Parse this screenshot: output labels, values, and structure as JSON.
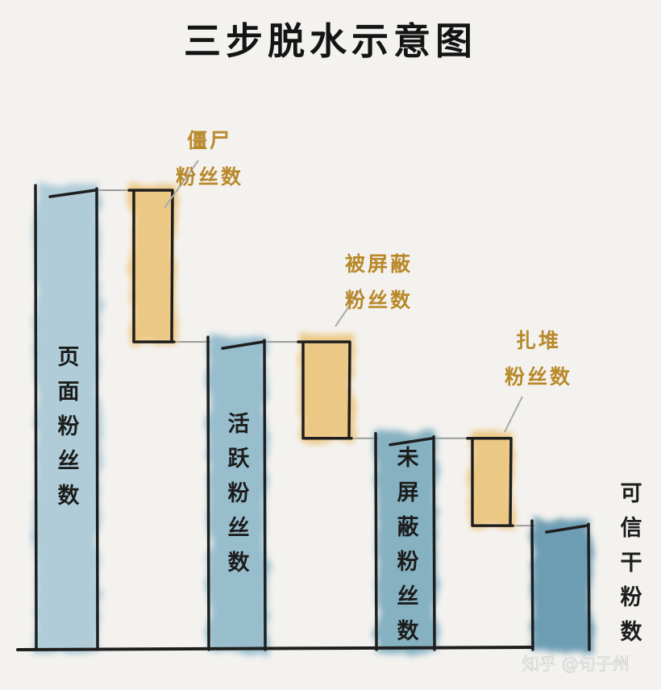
{
  "chart_data": {
    "type": "waterfall",
    "title": "三步脱水示意图",
    "categories": [
      "页面粉丝数",
      "僵尸粉丝数",
      "活跃粉丝数",
      "被屏蔽粉丝数",
      "未屏蔽粉丝数",
      "扎堆粉丝数",
      "可信干粉数"
    ],
    "bars": [
      {
        "label": "页面粉丝数",
        "kind": "total",
        "top": 100,
        "bottom": 0,
        "color": "#a8c8d6"
      },
      {
        "label": "僵尸粉丝数",
        "kind": "decrease",
        "top": 100,
        "bottom": 67,
        "color": "#ecc47a",
        "callout": [
          "僵尸",
          "粉丝数"
        ]
      },
      {
        "label": "活跃粉丝数",
        "kind": "total",
        "top": 67,
        "bottom": 0,
        "color": "#8fb9cb"
      },
      {
        "label": "被屏蔽粉丝数",
        "kind": "decrease",
        "top": 67,
        "bottom": 46,
        "color": "#ecc47a",
        "callout": [
          "被屏蔽",
          "粉丝数"
        ]
      },
      {
        "label": "未屏蔽粉丝数",
        "kind": "total",
        "top": 46,
        "bottom": 0,
        "color": "#7aaabd"
      },
      {
        "label": "扎堆粉丝数",
        "kind": "decrease",
        "top": 46,
        "bottom": 27,
        "color": "#ecc47a",
        "callout": [
          "扎堆",
          "粉丝数"
        ]
      },
      {
        "label": "可信干粉数",
        "kind": "total",
        "top": 27,
        "bottom": 0,
        "color": "#5f94ad"
      }
    ],
    "ylim": [
      0,
      100
    ],
    "axes_visible": false,
    "grid": false,
    "legend": "none"
  },
  "watermark": "知乎 @句子州"
}
